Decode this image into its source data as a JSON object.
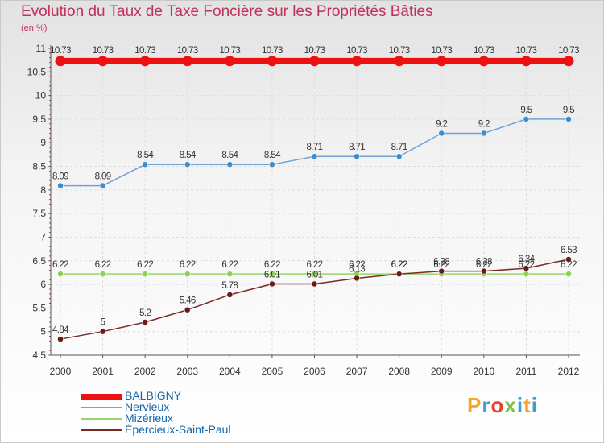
{
  "title": "Evolution du Taux de Taxe Foncière sur les Propriétés Bâties",
  "unit_label": "(en %)",
  "logo": {
    "text": "Proxiti",
    "colors": [
      "#f6a623",
      "#3aa0d8",
      "#e8402a",
      "#7cc142",
      "#3aa0d8",
      "#f6a623",
      "#3aa0d8"
    ]
  },
  "chart_data": {
    "type": "line",
    "title": "Evolution du Taux de Taxe Foncière sur les Propriétés Bâties",
    "ylabel": "(en %)",
    "xlabel": "",
    "ylim": [
      4.5,
      11
    ],
    "yticks": [
      "4.5",
      "5",
      "5.5",
      "6",
      "6.5",
      "7",
      "7.5",
      "8",
      "8.5",
      "9",
      "9.5",
      "10",
      "10.5",
      "11"
    ],
    "categories": [
      "2000",
      "2001",
      "2002",
      "2003",
      "2004",
      "2005",
      "2006",
      "2007",
      "2008",
      "2009",
      "2010",
      "2011",
      "2012"
    ],
    "series": [
      {
        "name": "BALBIGNY",
        "color": "#ee1111",
        "values": [
          10.73,
          10.73,
          10.73,
          10.73,
          10.73,
          10.73,
          10.73,
          10.73,
          10.73,
          10.73,
          10.73,
          10.73,
          10.73
        ],
        "labels": [
          "10.73",
          "10.73",
          "10.73",
          "10.73",
          "10.73",
          "10.73",
          "10.73",
          "10.73",
          "10.73",
          "10.73",
          "10.73",
          "10.73",
          "10.73"
        ]
      },
      {
        "name": "Nervieux",
        "color": "#6fa3d4",
        "values": [
          8.09,
          8.09,
          8.54,
          8.54,
          8.54,
          8.54,
          8.71,
          8.71,
          8.71,
          9.2,
          9.2,
          9.5,
          9.5
        ],
        "labels": [
          "8.09",
          "8.09",
          "8.54",
          "8.54",
          "8.54",
          "8.54",
          "8.71",
          "8.71",
          "8.71",
          "9.2",
          "9.2",
          "9.5",
          "9.5"
        ]
      },
      {
        "name": "Mizérieux",
        "color": "#99d36a",
        "values": [
          6.22,
          6.22,
          6.22,
          6.22,
          6.22,
          6.22,
          6.22,
          6.22,
          6.22,
          6.22,
          6.22,
          6.22,
          6.22
        ],
        "labels": [
          "6.22",
          "6.22",
          "6.22",
          "6.22",
          "6.22",
          "6.22",
          "6.22",
          "6.22",
          "6.22",
          "6.22",
          "6.22",
          "6.22",
          "6.22"
        ]
      },
      {
        "name": "Épercieux-Saint-Paul",
        "color": "#7a2a2a",
        "values": [
          4.84,
          5,
          5.2,
          5.46,
          5.78,
          6.01,
          6.01,
          6.13,
          6.22,
          6.28,
          6.28,
          6.34,
          6.53
        ],
        "labels": [
          "4.84",
          "5",
          "5.2",
          "5.46",
          "5.78",
          "6.01",
          "6.01",
          "6.13",
          "6.22",
          "6.28",
          "6.28",
          "6.34",
          "6.53"
        ]
      }
    ]
  }
}
